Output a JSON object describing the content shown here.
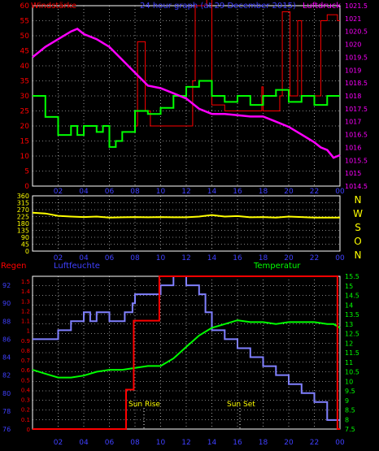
{
  "chart_data": [
    {
      "type": "line",
      "title": "24 hour graph (at 29 December 2015)",
      "left_axis_label": "Windstärke",
      "right_axis_label": "Luftdruck",
      "left_ylim": [
        0,
        60
      ],
      "left_ticks": [
        0,
        5,
        10,
        15,
        20,
        25,
        30,
        35,
        40,
        45,
        50,
        55,
        60
      ],
      "right_ylim": [
        1014.5,
        1021.5
      ],
      "right_ticks": [
        "1014.5",
        "1015",
        "1015.5",
        "1016",
        "1016.5",
        "1017",
        "1017.5",
        "1018",
        "1018.5",
        "1019",
        "1019.5",
        "1020",
        "1020.5",
        "1021",
        "1021.5"
      ],
      "x_ticks": [
        "02",
        "04",
        "06",
        "08",
        "10",
        "12",
        "14",
        "16",
        "18",
        "20",
        "22",
        "00"
      ],
      "series": [
        {
          "name": "Luftdruck",
          "color": "#ff00ff",
          "x": [
            0,
            1,
            2,
            3,
            3.5,
            4,
            5,
            6,
            7,
            8,
            9,
            10,
            11,
            12,
            13,
            14,
            15,
            16,
            17,
            18,
            19,
            20,
            21,
            22,
            22.5,
            23,
            23.5,
            24
          ],
          "y": [
            1019.5,
            1019.9,
            1020.2,
            1020.5,
            1020.6,
            1020.4,
            1020.2,
            1019.9,
            1019.4,
            1018.9,
            1018.4,
            1018.3,
            1018.1,
            1017.9,
            1017.5,
            1017.3,
            1017.3,
            1017.25,
            1017.2,
            1017.2,
            1017.0,
            1016.8,
            1016.5,
            1016.2,
            1016.0,
            1015.9,
            1015.6,
            1015.7
          ]
        },
        {
          "name": "Wind",
          "color": "#00ff00",
          "x": [
            0,
            1,
            1,
            2,
            2,
            3,
            3,
            3.5,
            3.5,
            4,
            4,
            5,
            5,
            5.5,
            5.5,
            6,
            6,
            6.5,
            6.5,
            7,
            7,
            8,
            8,
            9,
            9,
            10,
            10,
            11,
            11,
            12,
            12,
            13,
            13,
            14,
            14,
            15,
            15,
            16,
            16,
            17,
            17,
            18,
            18,
            19,
            19,
            20,
            20,
            21,
            21,
            22,
            22,
            23,
            23,
            24
          ],
          "y": [
            30,
            30,
            23,
            23,
            17,
            17,
            20,
            20,
            17,
            17,
            20,
            20,
            18,
            18,
            20,
            20,
            13,
            13,
            15,
            15,
            18,
            18,
            25,
            25,
            24,
            24,
            26,
            26,
            30,
            30,
            33,
            33,
            35,
            35,
            30,
            30,
            28,
            28,
            30,
            30,
            27,
            27,
            30,
            30,
            32,
            32,
            28,
            28,
            30,
            30,
            27,
            27,
            30,
            30
          ]
        },
        {
          "name": "Boeen",
          "color": "#ff0000",
          "x": [
            8,
            8.2,
            8.2,
            8.8,
            8.8,
            9.2,
            9.2,
            12.5,
            12.5,
            12.7,
            12.7,
            13.6,
            13.6,
            14,
            14,
            15,
            15,
            17.9,
            17.9,
            18,
            18,
            19.3,
            19.3,
            19.5,
            19.5,
            20.1,
            20.1,
            20.7,
            20.7,
            21,
            21,
            22.5,
            22.5,
            23,
            23,
            23.8,
            23.8,
            24
          ],
          "y": [
            20,
            20,
            48,
            48,
            25,
            25,
            20,
            20,
            35,
            35,
            60,
            60,
            63,
            63,
            27,
            27,
            25,
            25,
            33,
            33,
            25,
            25,
            30,
            30,
            58,
            58,
            30,
            30,
            55,
            55,
            30,
            30,
            55,
            55,
            57,
            57,
            55,
            55
          ]
        }
      ]
    },
    {
      "type": "line",
      "right_letters": [
        "N",
        "W",
        "S",
        "O",
        "N"
      ],
      "ylim": [
        0,
        360
      ],
      "y_ticks": [
        "0",
        "45",
        "90",
        "135",
        "180",
        "225",
        "270",
        "315",
        "360"
      ],
      "x_ticks": [
        "02",
        "04",
        "06",
        "08",
        "10",
        "12",
        "14",
        "16",
        "18",
        "20",
        "22",
        "00"
      ],
      "series": [
        {
          "name": "Windrichtung",
          "color": "#ffff00",
          "x": [
            0,
            1,
            2,
            3,
            4,
            5,
            6,
            7,
            8,
            9,
            10,
            11,
            12,
            13,
            14,
            15,
            16,
            17,
            18,
            19,
            20,
            21,
            22,
            23,
            24
          ],
          "y": [
            250,
            245,
            230,
            225,
            222,
            225,
            218,
            220,
            222,
            220,
            222,
            220,
            220,
            225,
            235,
            225,
            228,
            220,
            222,
            218,
            225,
            222,
            218,
            218,
            218
          ]
        }
      ]
    },
    {
      "type": "line",
      "left_axis_label": "Regen",
      "mid_label": "Luftfeuchte",
      "right_axis_label": "Temperatur",
      "humidity_ticks": [
        "76",
        "78",
        "80",
        "82",
        "84",
        "86",
        "88",
        "90",
        "92"
      ],
      "rain_ticks": [
        "0",
        "0.1",
        "0.2",
        "0.3",
        "0.4",
        "0.5",
        "0.6",
        "0.7",
        "0.8",
        "0.9",
        "1",
        "1.1",
        "1.2",
        "1.3",
        "1.4",
        "1.5"
      ],
      "temp_ticks": [
        "7.5",
        "8",
        "8.5",
        "9",
        "9.5",
        "10",
        "10.5",
        "11",
        "11.5",
        "12",
        "12.5",
        "13",
        "13.5",
        "14",
        "14.5",
        "15",
        "15.5"
      ],
      "temp_ylim": [
        7.5,
        15.5
      ],
      "rain_ylim": [
        0,
        1.55
      ],
      "humidity_ylim": [
        76,
        93
      ],
      "x_ticks": [
        "02",
        "04",
        "06",
        "08",
        "10",
        "12",
        "14",
        "16",
        "18",
        "20",
        "22",
        "00"
      ],
      "annotations": [
        "Sun Rise",
        "Sun Set"
      ],
      "series": [
        {
          "name": "Luftfeuchte",
          "color": "#8080ff",
          "x": [
            0,
            2,
            2,
            3,
            3,
            4,
            4,
            4.5,
            4.5,
            5,
            5,
            6,
            6,
            7.2,
            7.2,
            7.8,
            7.8,
            8,
            8,
            9,
            9,
            10,
            10,
            11,
            11,
            12,
            12,
            13,
            13,
            13.5,
            13.5,
            14,
            14,
            15,
            15,
            16,
            16,
            17,
            17,
            18,
            18,
            19,
            19,
            20,
            20,
            21,
            21,
            22,
            22,
            23,
            23,
            24
          ],
          "y": [
            86,
            86,
            87,
            87,
            88,
            88,
            89,
            89,
            88,
            88,
            89,
            89,
            88,
            88,
            89,
            89,
            90,
            90,
            91,
            91,
            91,
            91,
            92,
            92,
            93,
            93,
            92,
            92,
            91,
            91,
            89,
            89,
            87,
            87,
            86,
            86,
            85,
            85,
            84,
            84,
            83,
            83,
            82,
            82,
            81,
            81,
            80,
            80,
            79,
            79,
            77,
            77
          ]
        },
        {
          "name": "Regen",
          "color": "#ff0000",
          "x": [
            0,
            7.3,
            7.3,
            7.9,
            7.9,
            9.9,
            9.9,
            23.8,
            23.8,
            24
          ],
          "y": [
            0,
            0,
            0.4,
            0.4,
            1.1,
            1.1,
            1.55,
            1.55,
            0,
            0
          ]
        },
        {
          "name": "Temperatur",
          "color": "#00ff00",
          "x": [
            0,
            1,
            2,
            3,
            4,
            5,
            6,
            7,
            8,
            9,
            10,
            11,
            12,
            13,
            14,
            15,
            16,
            17,
            18,
            19,
            20,
            21,
            22,
            23,
            23.5,
            24
          ],
          "y": [
            10.6,
            10.4,
            10.2,
            10.2,
            10.3,
            10.5,
            10.6,
            10.6,
            10.7,
            10.8,
            10.8,
            11.2,
            11.8,
            12.4,
            12.8,
            13.0,
            13.2,
            13.1,
            13.1,
            13.0,
            13.1,
            13.1,
            13.1,
            13.0,
            13.0,
            12.8
          ]
        }
      ]
    }
  ]
}
